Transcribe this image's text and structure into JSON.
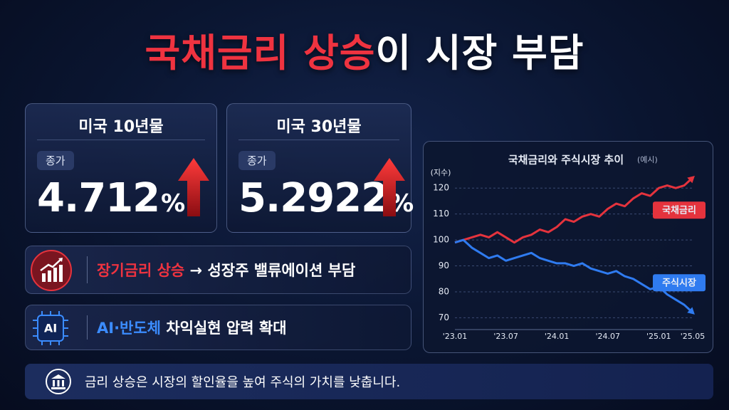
{
  "header": {
    "title_highlight": "국채금리 상승",
    "title_rest": "이 시장 부담"
  },
  "cards": [
    {
      "label": "미국 10년물",
      "badge": "종가",
      "value": "4.712",
      "unit": "%"
    },
    {
      "label": "미국 30년물",
      "badge": "종가",
      "value": "5.2922",
      "unit": "%"
    }
  ],
  "insights": [
    {
      "highlight": "장기금리 상승",
      "text": "→ 성장주 밸류에이션 부담"
    },
    {
      "icon": "AI",
      "highlight": "AI·반도체",
      "text": "차익실현 압력 확대"
    }
  ],
  "footer": {
    "text": "금리 상승은 시장의 할인율을 높여 주식의 가치를 낮춥니다."
  },
  "chart_data": {
    "type": "line",
    "title": "국채금리와 주식시장 추이",
    "subtitle": "(예시)",
    "y_label": "(지수)",
    "categories": [
      "'23.01",
      null,
      null,
      null,
      null,
      null,
      "'23.07",
      null,
      null,
      null,
      null,
      null,
      "'24.01",
      null,
      null,
      null,
      null,
      null,
      "'24.07",
      null,
      null,
      null,
      null,
      null,
      "'25.01",
      null,
      null,
      null,
      "'25.05"
    ],
    "series": [
      {
        "name": "국채금리",
        "color": "#e5333d",
        "values": [
          99,
          100,
          101,
          102,
          101,
          103,
          101,
          99,
          101,
          102,
          104,
          103,
          105,
          108,
          107,
          109,
          110,
          109,
          112,
          114,
          113,
          116,
          118,
          117,
          120,
          121,
          120,
          121,
          124
        ]
      },
      {
        "name": "주식시장",
        "color": "#2f7bf0",
        "values": [
          99,
          100,
          97,
          95,
          93,
          94,
          92,
          93,
          94,
          95,
          93,
          92,
          91,
          91,
          90,
          91,
          89,
          88,
          87,
          88,
          86,
          85,
          83,
          81,
          82,
          79,
          77,
          75,
          72
        ]
      }
    ],
    "ylim": [
      66,
      125
    ],
    "yticks": [
      70,
      80,
      90,
      100,
      110,
      120
    ],
    "grid": true
  }
}
